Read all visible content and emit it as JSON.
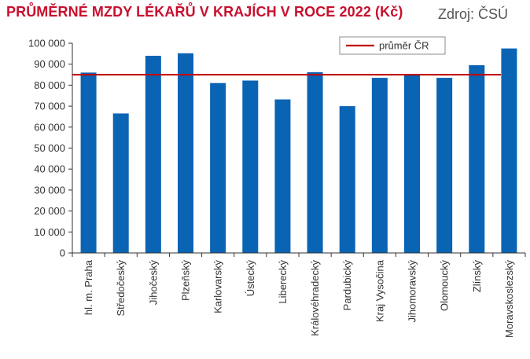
{
  "header": {
    "title": "PRŮMĚRNÉ MZDY LÉKAŘŮ V KRAJÍCH V ROCE 2022 (Kč)",
    "source": "Zdroj: ČSÚ"
  },
  "chart_data": {
    "type": "bar",
    "title": "PRŮMĚRNÉ MZDY LÉKAŘŮ V KRAJÍCH V ROCE 2022 (Kč)",
    "xlabel": "",
    "ylabel": "",
    "ylim": [
      0,
      100000
    ],
    "yticks": [
      0,
      10000,
      20000,
      30000,
      40000,
      50000,
      60000,
      70000,
      80000,
      90000,
      100000
    ],
    "ytick_labels": [
      "0",
      "10 000",
      "20 000",
      "30 000",
      "40 000",
      "50 000",
      "60 000",
      "70 000",
      "80 000",
      "90 000",
      "100 000"
    ],
    "categories": [
      "hl. m. Praha",
      "Středočeský",
      "Jihočeský",
      "Plzeňský",
      "Karlovarský",
      "Ústecký",
      "Liberecký",
      "Královéhradecký",
      "Pardubický",
      "Kraj Vysočina",
      "Jihomoravský",
      "Olomoucký",
      "Zlínský",
      "Moravskoslezský"
    ],
    "series": [
      {
        "values": [
          86000,
          66500,
          94000,
          95200,
          81000,
          82200,
          73200,
          86200,
          70000,
          83500,
          84800,
          83500,
          89500,
          97500
        ],
        "color": "#0a64b4"
      }
    ],
    "reference_line": {
      "name": "průměr ČR",
      "value": 85000,
      "color": "#c00000"
    },
    "legend": {
      "position": "top-right",
      "entries": [
        "průměr ČR"
      ]
    },
    "grid": false
  }
}
